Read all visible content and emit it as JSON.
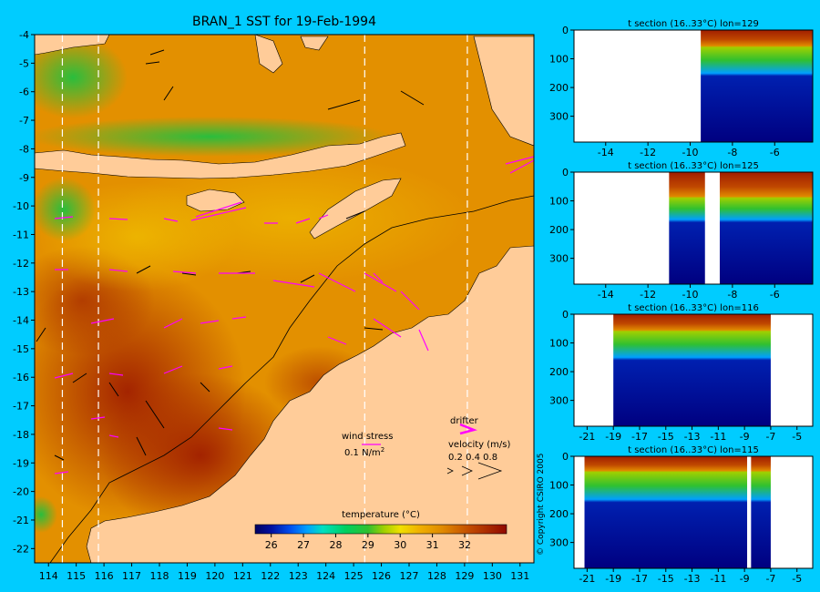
{
  "colors": {
    "background": "#00ccff",
    "land": "#ffcc99",
    "sea_warm": "#a01e00",
    "sea_mid": "#e08a00",
    "sea_cool": "#30c040",
    "deep": "#000080",
    "no_data": "#ffffff",
    "vector_black": "#000000",
    "vector_magenta": "#ff00ff",
    "section_line": "#ffffff"
  },
  "chart_data": [
    {
      "type": "heatmap",
      "title": "BRAN_1 SST for 19-Feb-1994",
      "x_ticks": [
        114,
        115,
        116,
        117,
        118,
        119,
        120,
        121,
        122,
        123,
        124,
        125,
        126,
        127,
        128,
        129,
        130,
        131
      ],
      "y_ticks": [
        -4,
        -5,
        -6,
        -7,
        -8,
        -9,
        -10,
        -11,
        -12,
        -13,
        -14,
        -15,
        -16,
        -17,
        -18,
        -19,
        -20,
        -21,
        -22
      ],
      "xlim": [
        113.5,
        131.5
      ],
      "ylim": [
        -22.5,
        -4
      ],
      "section_lines_lon": [
        114.5,
        115.8,
        125.4,
        129.1
      ],
      "colorbar": {
        "title": "temperature (°C)",
        "ticks": [
          26,
          27,
          28,
          29,
          30,
          31,
          32
        ],
        "range": [
          25.5,
          33.3
        ],
        "stops": [
          {
            "v": 25.5,
            "c": "#000060"
          },
          {
            "v": 26.0,
            "c": "#0010a0"
          },
          {
            "v": 26.6,
            "c": "#0050f0"
          },
          {
            "v": 27.1,
            "c": "#00a0ff"
          },
          {
            "v": 27.6,
            "c": "#00e0c0"
          },
          {
            "v": 28.3,
            "c": "#00d060"
          },
          {
            "v": 29.0,
            "c": "#30c030"
          },
          {
            "v": 29.5,
            "c": "#a0d000"
          },
          {
            "v": 30.0,
            "c": "#f0e000"
          },
          {
            "v": 30.6,
            "c": "#f0b000"
          },
          {
            "v": 31.3,
            "c": "#e08a00"
          },
          {
            "v": 32.2,
            "c": "#c04800"
          },
          {
            "v": 33.3,
            "c": "#900800"
          }
        ]
      },
      "legend": {
        "wind_stress_label": "wind stress",
        "wind_stress_scale": "0.1 N/m",
        "wind_stress_exponent": "2",
        "drifter_label": "drifter",
        "velocity_label": "velocity (m/s)",
        "velocity_scale": "0.2 0.4 0.8"
      }
    },
    {
      "type": "heatmap",
      "title": "t section (16..33°C) lon=129",
      "x_ticks": [
        -14,
        -12,
        -10,
        -8,
        -6
      ],
      "xlim": [
        -15.5,
        -4.2
      ],
      "y_ticks": [
        0,
        100,
        200,
        300
      ],
      "ylim": [
        0,
        390
      ],
      "profile": {
        "warm_bottom": 55,
        "thermo_top": 60,
        "thermo_bottom": 150,
        "deep_top": 160
      },
      "no_data": [
        [
          -15.5,
          -9.5
        ]
      ]
    },
    {
      "type": "heatmap",
      "title": "t section (16..33°C) lon=125",
      "x_ticks": [
        -14,
        -12,
        -10,
        -8,
        -6
      ],
      "xlim": [
        -15.5,
        -4.2
      ],
      "y_ticks": [
        0,
        100,
        200,
        300
      ],
      "ylim": [
        0,
        390
      ],
      "profile": {
        "warm_bottom": 85,
        "thermo_top": 90,
        "thermo_bottom": 165,
        "deep_top": 175
      },
      "no_data": [
        [
          -15.5,
          -11.0
        ],
        [
          -9.3,
          -8.6
        ]
      ]
    },
    {
      "type": "heatmap",
      "title": "t section (16..33°C) lon=116",
      "x_ticks": [
        -21,
        -19,
        -17,
        -15,
        -13,
        -11,
        -9,
        -7,
        -5
      ],
      "xlim": [
        -22.0,
        -3.8
      ],
      "y_ticks": [
        0,
        100,
        200,
        300
      ],
      "ylim": [
        0,
        390
      ],
      "profile": {
        "warm_bottom": 55,
        "thermo_top": 60,
        "thermo_bottom": 150,
        "deep_top": 160
      },
      "no_data": [
        [
          -22.0,
          -19.0
        ],
        [
          -7.0,
          -3.8
        ]
      ]
    },
    {
      "type": "heatmap",
      "title": "t section (16..33°C) lon=115",
      "x_ticks": [
        -21,
        -19,
        -17,
        -15,
        -13,
        -11,
        -9,
        -7,
        -5
      ],
      "xlim": [
        -22.0,
        -3.8
      ],
      "y_ticks": [
        0,
        100,
        200,
        300
      ],
      "ylim": [
        0,
        390
      ],
      "profile": {
        "warm_bottom": 50,
        "thermo_top": 55,
        "thermo_bottom": 150,
        "deep_top": 160
      },
      "no_data": [
        [
          -22.0,
          -21.2
        ],
        [
          -8.8,
          -8.5
        ],
        [
          -7.0,
          -3.8
        ]
      ]
    }
  ],
  "copyright": "© Copyright CSIRO 2005"
}
